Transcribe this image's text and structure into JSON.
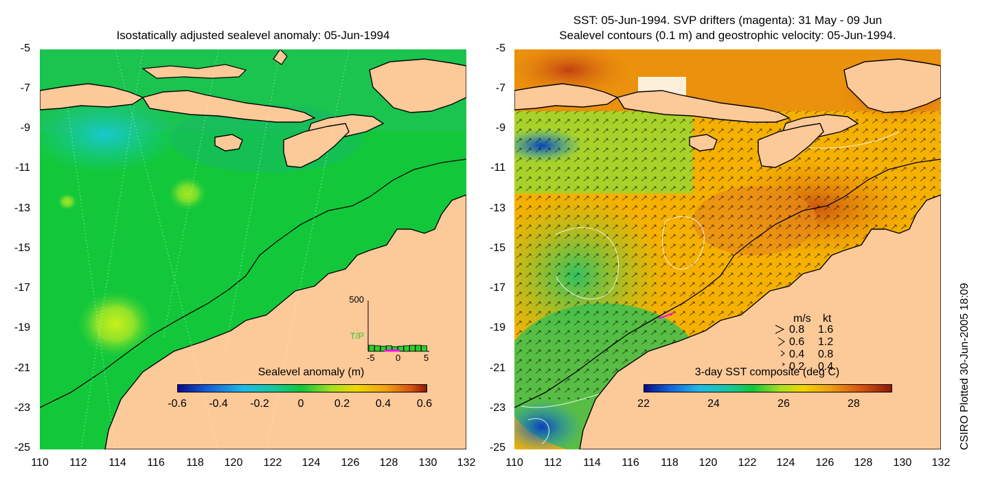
{
  "left_panel": {
    "title": "Isostatically adjusted sealevel anomaly: 05-Jun-1994",
    "colorbar": {
      "label": "Sealevel anomaly (m)",
      "ticks": [
        "-0.6",
        "-0.4",
        "-0.2",
        "0",
        "0.2",
        "0.4",
        "0.6"
      ]
    },
    "inset": {
      "y_max_label": "500",
      "series_label": "T/P",
      "x_ticks": [
        "-5",
        "0",
        "5"
      ],
      "bar_values": [
        60,
        55,
        50,
        55,
        45,
        50,
        55,
        60,
        60,
        55
      ]
    }
  },
  "right_panel": {
    "title_line1": "SST: 05-Jun-1994. SVP drifters (magenta): 31 May - 09 Jun",
    "title_line2": "Sealevel contours (0.1 m) and geostrophic velocity: 05-Jun-1994.",
    "colorbar": {
      "label": "3-day SST composite (deg C)",
      "ticks": [
        "22",
        "24",
        "26",
        "28"
      ]
    },
    "velocity_legend": {
      "header_ms": "m/s",
      "header_kt": "kt",
      "rows": [
        {
          "ms": "0.8",
          "kt": "1.6"
        },
        {
          "ms": "0.6",
          "kt": "1.2"
        },
        {
          "ms": "0.4",
          "kt": "0.8"
        },
        {
          "ms": "0.2",
          "kt": "0.4"
        }
      ]
    }
  },
  "axes": {
    "lat_ticks": [
      "-5",
      "-7",
      "-9",
      "-11",
      "-13",
      "-15",
      "-17",
      "-19",
      "-21",
      "-23",
      "-25"
    ],
    "lon_ticks": [
      "110",
      "112",
      "114",
      "116",
      "118",
      "120",
      "122",
      "124",
      "126",
      "128",
      "130",
      "132"
    ]
  },
  "footer": {
    "plotted_stamp": "CSIRO Plotted 30-Jun-2005 18:09"
  },
  "colors": {
    "land": "#fcc999",
    "sealevel_base": "#12c83a",
    "sst_base": "#f5b000"
  }
}
